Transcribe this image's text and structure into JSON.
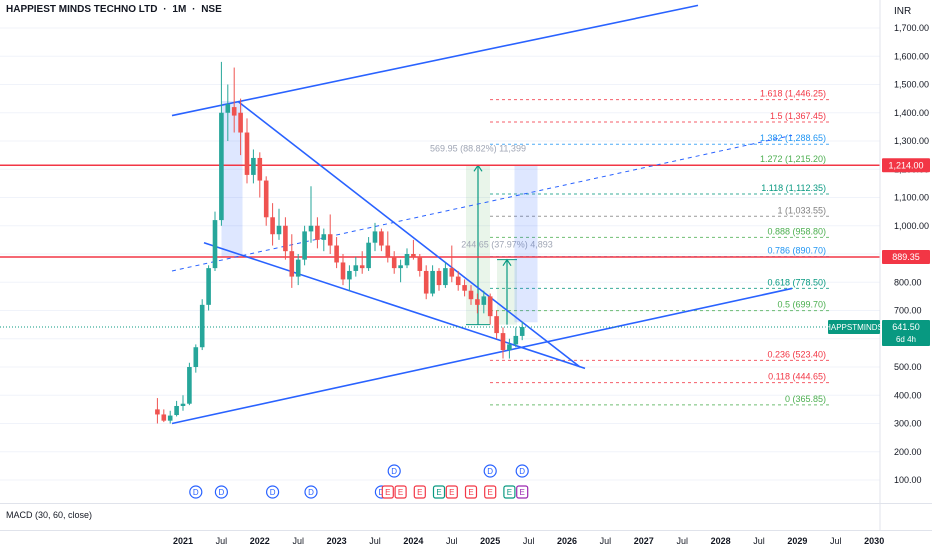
{
  "header": {
    "symbol_name": "HAPPIEST MINDS TECHNO LTD",
    "sep1": "·",
    "interval": "1M",
    "sep2": "·",
    "exchange": "NSE",
    "currency": "INR"
  },
  "indicator": {
    "label": "MACD (30, 60, close)"
  },
  "colors": {
    "up": "#26a69a",
    "down": "#ef5350",
    "trendline": "#2962ff",
    "resistance": "#f23645"
  },
  "chart_data": {
    "type": "candlestick",
    "ylim": [
      50,
      1780
    ],
    "y_ticks": [
      "100.00",
      "200.00",
      "300.00",
      "400.00",
      "500.00",
      "600.00",
      "700.00",
      "800.00",
      "900.00",
      "1,000.00",
      "1,100.00",
      "1,200.00",
      "1,300.00",
      "1,400.00",
      "1,500.00",
      "1,600.00",
      "1,700.00"
    ],
    "x_labels": [
      "2021",
      "Jul",
      "2022",
      "Jul",
      "2023",
      "Jul",
      "2024",
      "Jul",
      "2025",
      "Jul",
      "2026",
      "Jul",
      "2027",
      "Jul",
      "2028",
      "Jul",
      "2029",
      "Jul",
      "2030"
    ],
    "candles": [
      {
        "date": "2020-09",
        "o": 350,
        "h": 390,
        "l": 300,
        "c": 332
      },
      {
        "date": "2020-10",
        "o": 332,
        "h": 350,
        "l": 305,
        "c": 310
      },
      {
        "date": "2020-11",
        "o": 310,
        "h": 345,
        "l": 300,
        "c": 328
      },
      {
        "date": "2020-12",
        "o": 330,
        "h": 380,
        "l": 325,
        "c": 362
      },
      {
        "date": "2021-01",
        "o": 362,
        "h": 400,
        "l": 345,
        "c": 370
      },
      {
        "date": "2021-02",
        "o": 370,
        "h": 515,
        "l": 365,
        "c": 500
      },
      {
        "date": "2021-03",
        "o": 500,
        "h": 580,
        "l": 480,
        "c": 570
      },
      {
        "date": "2021-04",
        "o": 570,
        "h": 740,
        "l": 560,
        "c": 720
      },
      {
        "date": "2021-05",
        "o": 720,
        "h": 860,
        "l": 700,
        "c": 850
      },
      {
        "date": "2021-06",
        "o": 850,
        "h": 1050,
        "l": 840,
        "c": 1020
      },
      {
        "date": "2021-07",
        "o": 1020,
        "h": 1580,
        "l": 1000,
        "c": 1400
      },
      {
        "date": "2021-08",
        "o": 1400,
        "h": 1500,
        "l": 1300,
        "c": 1430
      },
      {
        "date": "2021-09",
        "o": 1420,
        "h": 1560,
        "l": 1330,
        "c": 1390
      },
      {
        "date": "2021-10",
        "o": 1400,
        "h": 1450,
        "l": 1250,
        "c": 1330
      },
      {
        "date": "2021-11",
        "o": 1330,
        "h": 1380,
        "l": 1150,
        "c": 1180
      },
      {
        "date": "2021-12",
        "o": 1180,
        "h": 1270,
        "l": 1150,
        "c": 1240
      },
      {
        "date": "2022-01",
        "o": 1240,
        "h": 1260,
        "l": 1100,
        "c": 1160
      },
      {
        "date": "2022-02",
        "o": 1160,
        "h": 1175,
        "l": 1000,
        "c": 1030
      },
      {
        "date": "2022-03",
        "o": 1030,
        "h": 1080,
        "l": 930,
        "c": 970
      },
      {
        "date": "2022-04",
        "o": 970,
        "h": 1060,
        "l": 950,
        "c": 1000
      },
      {
        "date": "2022-05",
        "o": 1000,
        "h": 1030,
        "l": 880,
        "c": 910
      },
      {
        "date": "2022-06",
        "o": 910,
        "h": 970,
        "l": 780,
        "c": 820
      },
      {
        "date": "2022-07",
        "o": 820,
        "h": 900,
        "l": 790,
        "c": 880
      },
      {
        "date": "2022-08",
        "o": 880,
        "h": 1000,
        "l": 860,
        "c": 980
      },
      {
        "date": "2022-09",
        "o": 980,
        "h": 1140,
        "l": 940,
        "c": 1000
      },
      {
        "date": "2022-10",
        "o": 1000,
        "h": 1030,
        "l": 920,
        "c": 950
      },
      {
        "date": "2022-11",
        "o": 950,
        "h": 990,
        "l": 910,
        "c": 970
      },
      {
        "date": "2022-12",
        "o": 970,
        "h": 1040,
        "l": 900,
        "c": 930
      },
      {
        "date": "2023-01",
        "o": 930,
        "h": 960,
        "l": 850,
        "c": 870
      },
      {
        "date": "2023-02",
        "o": 870,
        "h": 900,
        "l": 790,
        "c": 810
      },
      {
        "date": "2023-03",
        "o": 810,
        "h": 860,
        "l": 770,
        "c": 840
      },
      {
        "date": "2023-04",
        "o": 840,
        "h": 890,
        "l": 820,
        "c": 860
      },
      {
        "date": "2023-05",
        "o": 860,
        "h": 910,
        "l": 830,
        "c": 850
      },
      {
        "date": "2023-06",
        "o": 850,
        "h": 960,
        "l": 840,
        "c": 940
      },
      {
        "date": "2023-07",
        "o": 940,
        "h": 1010,
        "l": 910,
        "c": 980
      },
      {
        "date": "2023-08",
        "o": 980,
        "h": 990,
        "l": 910,
        "c": 930
      },
      {
        "date": "2023-09",
        "o": 930,
        "h": 980,
        "l": 870,
        "c": 890
      },
      {
        "date": "2023-10",
        "o": 890,
        "h": 910,
        "l": 830,
        "c": 850
      },
      {
        "date": "2023-11",
        "o": 850,
        "h": 880,
        "l": 800,
        "c": 860
      },
      {
        "date": "2023-12",
        "o": 860,
        "h": 920,
        "l": 850,
        "c": 900
      },
      {
        "date": "2024-01",
        "o": 900,
        "h": 950,
        "l": 880,
        "c": 890
      },
      {
        "date": "2024-02",
        "o": 890,
        "h": 900,
        "l": 820,
        "c": 840
      },
      {
        "date": "2024-03",
        "o": 840,
        "h": 860,
        "l": 740,
        "c": 760
      },
      {
        "date": "2024-04",
        "o": 760,
        "h": 860,
        "l": 750,
        "c": 840
      },
      {
        "date": "2024-05",
        "o": 840,
        "h": 850,
        "l": 770,
        "c": 790
      },
      {
        "date": "2024-06",
        "o": 790,
        "h": 870,
        "l": 780,
        "c": 850
      },
      {
        "date": "2024-07",
        "o": 850,
        "h": 930,
        "l": 800,
        "c": 820
      },
      {
        "date": "2024-08",
        "o": 820,
        "h": 840,
        "l": 770,
        "c": 790
      },
      {
        "date": "2024-09",
        "o": 790,
        "h": 810,
        "l": 750,
        "c": 770
      },
      {
        "date": "2024-10",
        "o": 770,
        "h": 790,
        "l": 720,
        "c": 740
      },
      {
        "date": "2024-11",
        "o": 740,
        "h": 760,
        "l": 690,
        "c": 720
      },
      {
        "date": "2024-12",
        "o": 720,
        "h": 770,
        "l": 690,
        "c": 750
      },
      {
        "date": "2025-01",
        "o": 750,
        "h": 760,
        "l": 650,
        "c": 680
      },
      {
        "date": "2025-02",
        "o": 680,
        "h": 700,
        "l": 600,
        "c": 620
      },
      {
        "date": "2025-03",
        "o": 620,
        "h": 640,
        "l": 530,
        "c": 560
      },
      {
        "date": "2025-04",
        "o": 560,
        "h": 600,
        "l": 530,
        "c": 580
      },
      {
        "date": "2025-05",
        "o": 580,
        "h": 640,
        "l": 570,
        "c": 610
      },
      {
        "date": "2025-06",
        "o": 610,
        "h": 660,
        "l": 595,
        "c": 641.5
      }
    ],
    "horizontal_lines": [
      {
        "price": 1214.0,
        "label": "1,214.00"
      },
      {
        "price": 889.35,
        "label": "889.35"
      }
    ],
    "fib_levels": [
      {
        "ratio": "1.618",
        "price": "1,446.25",
        "value": 1446.25,
        "color": "#f23645"
      },
      {
        "ratio": "1.5",
        "price": "1,367.45",
        "value": 1367.45,
        "color": "#f23645"
      },
      {
        "ratio": "1.382",
        "price": "1,288.65",
        "value": 1288.65,
        "color": "#2196f3"
      },
      {
        "ratio": "1.272",
        "price": "1,215.20",
        "value": 1215.2,
        "color": "#4caf50"
      },
      {
        "ratio": "1.118",
        "price": "1,112.35",
        "value": 1112.35,
        "color": "#089981"
      },
      {
        "ratio": "1",
        "price": "1,033.55",
        "value": 1033.55,
        "color": "#808080"
      },
      {
        "ratio": "0.888",
        "price": "958.80",
        "value": 958.8,
        "color": "#4caf50"
      },
      {
        "ratio": "0.786",
        "price": "890.70",
        "value": 890.7,
        "color": "#2196f3"
      },
      {
        "ratio": "0.618",
        "price": "778.50",
        "value": 778.5,
        "color": "#089981"
      },
      {
        "ratio": "0.5",
        "price": "699.70",
        "value": 699.7,
        "color": "#4caf50"
      },
      {
        "ratio": "0.236",
        "price": "523.40",
        "value": 523.4,
        "color": "#f23645"
      },
      {
        "ratio": "0.118",
        "price": "444.65",
        "value": 444.65,
        "color": "#f23645"
      },
      {
        "ratio": "0",
        "price": "365.85",
        "value": 365.85,
        "color": "#4caf50"
      }
    ],
    "measure_labels": [
      {
        "text": "569.95 (88.82%) 11,399"
      },
      {
        "text": "244.65 (37.97%) 4,893"
      }
    ],
    "last_price": {
      "symbol": "HAPPSTMINDS",
      "value": "641.50",
      "countdown": "6d 4h"
    },
    "event_markers": [
      {
        "date": "2021-03",
        "row": 1,
        "letter": "D",
        "color": "#2962ff"
      },
      {
        "date": "2021-07",
        "row": 1,
        "letter": "D",
        "color": "#2962ff"
      },
      {
        "date": "2022-03",
        "row": 1,
        "letter": "D",
        "color": "#2962ff"
      },
      {
        "date": "2022-09",
        "row": 1,
        "letter": "D",
        "color": "#2962ff"
      },
      {
        "date": "2023-08",
        "row": 1,
        "letter": "D",
        "color": "#2962ff"
      },
      {
        "date": "2023-09",
        "row": 1,
        "letter": "E",
        "color": "#f23645"
      },
      {
        "date": "2023-11",
        "row": 1,
        "letter": "E",
        "color": "#f23645"
      },
      {
        "date": "2024-02",
        "row": 1,
        "letter": "E",
        "color": "#f23645"
      },
      {
        "date": "2024-05",
        "row": 1,
        "letter": "E",
        "color": "#089981"
      },
      {
        "date": "2024-07",
        "row": 1,
        "letter": "E",
        "color": "#f23645"
      },
      {
        "date": "2024-10",
        "row": 1,
        "letter": "E",
        "color": "#f23645"
      },
      {
        "date": "2025-01",
        "row": 1,
        "letter": "E",
        "color": "#f23645"
      },
      {
        "date": "2025-04",
        "row": 1,
        "letter": "E",
        "color": "#089981"
      },
      {
        "date": "2025-06",
        "row": 1,
        "letter": "E",
        "color": "#9c27b0"
      },
      {
        "date": "2023-10",
        "row": 0,
        "letter": "D",
        "color": "#2962ff"
      },
      {
        "date": "2025-01",
        "row": 0,
        "letter": "D",
        "color": "#2962ff"
      },
      {
        "date": "2025-06",
        "row": 0,
        "letter": "D",
        "color": "#2962ff"
      }
    ]
  }
}
